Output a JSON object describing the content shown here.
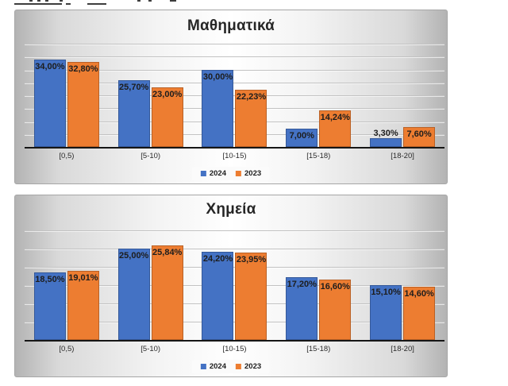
{
  "chart_data": [
    {
      "type": "bar",
      "title": "Μαθηματικά",
      "categories": [
        "[0,5)",
        "[5-10)",
        "[10-15)",
        "[15-18)",
        "[18-20]"
      ],
      "series": [
        {
          "name": "2024",
          "color": "#4472C4",
          "values": [
            34.0,
            25.7,
            30.0,
            7.0,
            3.3
          ],
          "labels": [
            "34,00%",
            "25,70%",
            "30,00%",
            "7,00%",
            "3,30%"
          ]
        },
        {
          "name": "2023",
          "color": "#ED7D31",
          "values": [
            32.8,
            23.0,
            22.23,
            14.24,
            7.6
          ],
          "labels": [
            "32,80%",
            "23,00%",
            "22,23%",
            "14,24%",
            "7,60%"
          ]
        }
      ],
      "xlabel": "",
      "ylabel": "",
      "ylim": [
        0,
        40
      ],
      "gridline_step": 5,
      "grid": true,
      "value_axis_labels_visible": false,
      "legend_position": "bottom"
    },
    {
      "type": "bar",
      "title": "Χημεία",
      "categories": [
        "[0,5)",
        "[5-10)",
        "[10-15)",
        "[15-18)",
        "[18-20]"
      ],
      "series": [
        {
          "name": "2024",
          "color": "#4472C4",
          "values": [
            18.5,
            25.0,
            24.2,
            17.2,
            15.1
          ],
          "labels": [
            "18,50%",
            "25,00%",
            "24,20%",
            "17,20%",
            "15,10%"
          ]
        },
        {
          "name": "2023",
          "color": "#ED7D31",
          "values": [
            19.01,
            25.84,
            23.95,
            16.6,
            14.6
          ],
          "labels": [
            "19,01%",
            "25,84%",
            "23,95%",
            "16,60%",
            "14,60%"
          ]
        }
      ],
      "xlabel": "",
      "ylabel": "",
      "ylim": [
        0,
        30
      ],
      "gridline_step": 5,
      "grid": true,
      "value_axis_labels_visible": false,
      "legend_position": "bottom"
    }
  ]
}
